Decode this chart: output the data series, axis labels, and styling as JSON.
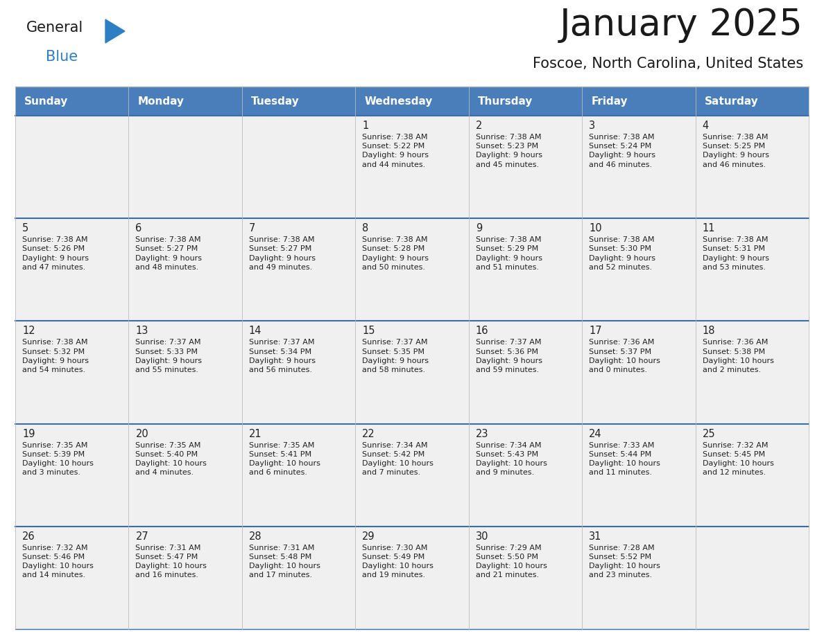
{
  "title": "January 2025",
  "subtitle": "Foscoe, North Carolina, United States",
  "days_of_week": [
    "Sunday",
    "Monday",
    "Tuesday",
    "Wednesday",
    "Thursday",
    "Friday",
    "Saturday"
  ],
  "header_bg": "#4a7ebb",
  "header_text": "#ffffff",
  "cell_bg": "#f0f0f0",
  "cell_text": "#222222",
  "row_sep_color": "#3a6ea8",
  "outer_border": "#c0c0c0",
  "title_color": "#1a1a1a",
  "subtitle_color": "#1a1a1a",
  "logo_general_color": "#1a1a1a",
  "logo_blue_color": "#2e7ec4",
  "logo_triangle_color": "#2e7ec4",
  "calendar_data": [
    [
      {
        "day": "",
        "info": ""
      },
      {
        "day": "",
        "info": ""
      },
      {
        "day": "",
        "info": ""
      },
      {
        "day": "1",
        "info": "Sunrise: 7:38 AM\nSunset: 5:22 PM\nDaylight: 9 hours\nand 44 minutes."
      },
      {
        "day": "2",
        "info": "Sunrise: 7:38 AM\nSunset: 5:23 PM\nDaylight: 9 hours\nand 45 minutes."
      },
      {
        "day": "3",
        "info": "Sunrise: 7:38 AM\nSunset: 5:24 PM\nDaylight: 9 hours\nand 46 minutes."
      },
      {
        "day": "4",
        "info": "Sunrise: 7:38 AM\nSunset: 5:25 PM\nDaylight: 9 hours\nand 46 minutes."
      }
    ],
    [
      {
        "day": "5",
        "info": "Sunrise: 7:38 AM\nSunset: 5:26 PM\nDaylight: 9 hours\nand 47 minutes."
      },
      {
        "day": "6",
        "info": "Sunrise: 7:38 AM\nSunset: 5:27 PM\nDaylight: 9 hours\nand 48 minutes."
      },
      {
        "day": "7",
        "info": "Sunrise: 7:38 AM\nSunset: 5:27 PM\nDaylight: 9 hours\nand 49 minutes."
      },
      {
        "day": "8",
        "info": "Sunrise: 7:38 AM\nSunset: 5:28 PM\nDaylight: 9 hours\nand 50 minutes."
      },
      {
        "day": "9",
        "info": "Sunrise: 7:38 AM\nSunset: 5:29 PM\nDaylight: 9 hours\nand 51 minutes."
      },
      {
        "day": "10",
        "info": "Sunrise: 7:38 AM\nSunset: 5:30 PM\nDaylight: 9 hours\nand 52 minutes."
      },
      {
        "day": "11",
        "info": "Sunrise: 7:38 AM\nSunset: 5:31 PM\nDaylight: 9 hours\nand 53 minutes."
      }
    ],
    [
      {
        "day": "12",
        "info": "Sunrise: 7:38 AM\nSunset: 5:32 PM\nDaylight: 9 hours\nand 54 minutes."
      },
      {
        "day": "13",
        "info": "Sunrise: 7:37 AM\nSunset: 5:33 PM\nDaylight: 9 hours\nand 55 minutes."
      },
      {
        "day": "14",
        "info": "Sunrise: 7:37 AM\nSunset: 5:34 PM\nDaylight: 9 hours\nand 56 minutes."
      },
      {
        "day": "15",
        "info": "Sunrise: 7:37 AM\nSunset: 5:35 PM\nDaylight: 9 hours\nand 58 minutes."
      },
      {
        "day": "16",
        "info": "Sunrise: 7:37 AM\nSunset: 5:36 PM\nDaylight: 9 hours\nand 59 minutes."
      },
      {
        "day": "17",
        "info": "Sunrise: 7:36 AM\nSunset: 5:37 PM\nDaylight: 10 hours\nand 0 minutes."
      },
      {
        "day": "18",
        "info": "Sunrise: 7:36 AM\nSunset: 5:38 PM\nDaylight: 10 hours\nand 2 minutes."
      }
    ],
    [
      {
        "day": "19",
        "info": "Sunrise: 7:35 AM\nSunset: 5:39 PM\nDaylight: 10 hours\nand 3 minutes."
      },
      {
        "day": "20",
        "info": "Sunrise: 7:35 AM\nSunset: 5:40 PM\nDaylight: 10 hours\nand 4 minutes."
      },
      {
        "day": "21",
        "info": "Sunrise: 7:35 AM\nSunset: 5:41 PM\nDaylight: 10 hours\nand 6 minutes."
      },
      {
        "day": "22",
        "info": "Sunrise: 7:34 AM\nSunset: 5:42 PM\nDaylight: 10 hours\nand 7 minutes."
      },
      {
        "day": "23",
        "info": "Sunrise: 7:34 AM\nSunset: 5:43 PM\nDaylight: 10 hours\nand 9 minutes."
      },
      {
        "day": "24",
        "info": "Sunrise: 7:33 AM\nSunset: 5:44 PM\nDaylight: 10 hours\nand 11 minutes."
      },
      {
        "day": "25",
        "info": "Sunrise: 7:32 AM\nSunset: 5:45 PM\nDaylight: 10 hours\nand 12 minutes."
      }
    ],
    [
      {
        "day": "26",
        "info": "Sunrise: 7:32 AM\nSunset: 5:46 PM\nDaylight: 10 hours\nand 14 minutes."
      },
      {
        "day": "27",
        "info": "Sunrise: 7:31 AM\nSunset: 5:47 PM\nDaylight: 10 hours\nand 16 minutes."
      },
      {
        "day": "28",
        "info": "Sunrise: 7:31 AM\nSunset: 5:48 PM\nDaylight: 10 hours\nand 17 minutes."
      },
      {
        "day": "29",
        "info": "Sunrise: 7:30 AM\nSunset: 5:49 PM\nDaylight: 10 hours\nand 19 minutes."
      },
      {
        "day": "30",
        "info": "Sunrise: 7:29 AM\nSunset: 5:50 PM\nDaylight: 10 hours\nand 21 minutes."
      },
      {
        "day": "31",
        "info": "Sunrise: 7:28 AM\nSunset: 5:52 PM\nDaylight: 10 hours\nand 23 minutes."
      },
      {
        "day": "",
        "info": ""
      }
    ]
  ]
}
